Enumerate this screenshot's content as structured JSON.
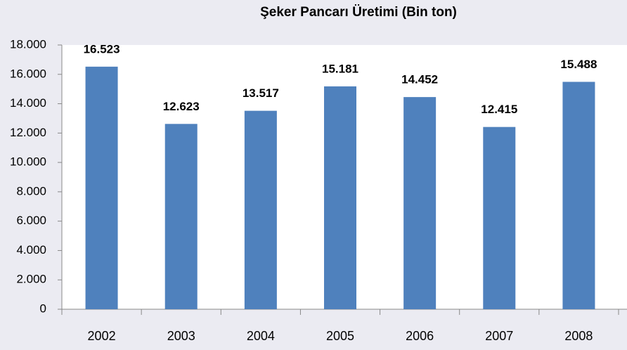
{
  "chart_data": {
    "type": "bar",
    "title": "Şeker Pancarı Üretimi (Bin ton)",
    "categories": [
      "2002",
      "2003",
      "2004",
      "2005",
      "2006",
      "2007",
      "2008"
    ],
    "values": [
      16523,
      12623,
      13517,
      15181,
      14452,
      12415,
      15488
    ],
    "value_labels": [
      "16.523",
      "12.623",
      "13.517",
      "15.181",
      "14.452",
      "12.415",
      "15.488"
    ],
    "color": "#4f81bd",
    "ylim": [
      0,
      18000
    ],
    "yticks": [
      0,
      {
        "value": 2000,
        "label": "2.000"
      },
      {
        "value": 4000,
        "label": "4.000"
      },
      {
        "value": 6000,
        "label": "6.000"
      },
      {
        "value": 8000,
        "label": "8.000"
      },
      {
        "value": 10000,
        "label": "10.000"
      },
      {
        "value": 12000,
        "label": "12.000"
      },
      {
        "value": 14000,
        "label": "14.000"
      },
      {
        "value": 16000,
        "label": "16.000"
      },
      {
        "value": 18000,
        "label": "18.000"
      }
    ],
    "grid": false
  }
}
